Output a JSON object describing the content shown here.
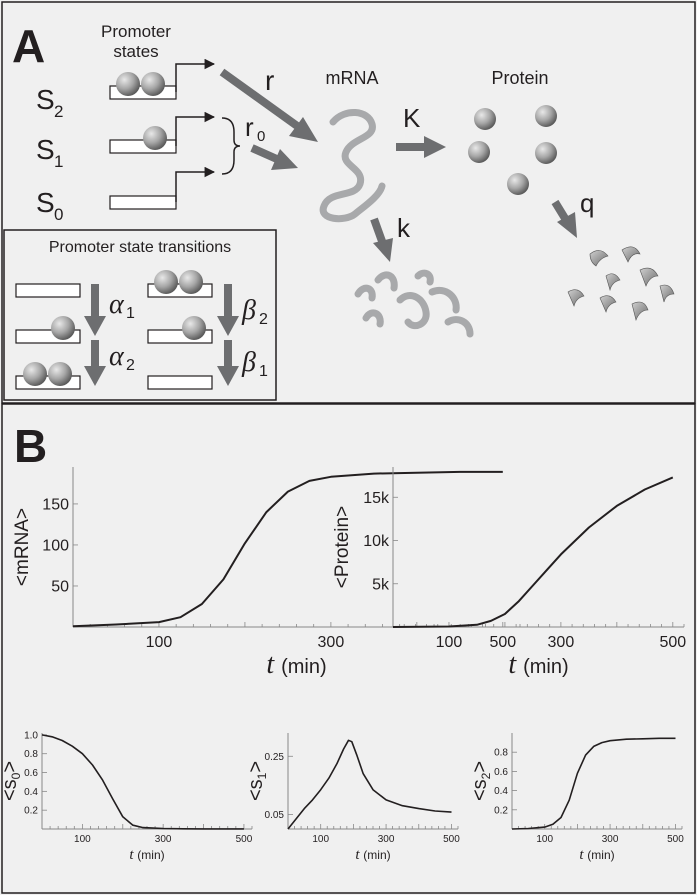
{
  "panelA": {
    "label": "A",
    "promoter_states_title": [
      "Promoter",
      "states"
    ],
    "states": [
      {
        "name": "S",
        "sub": "2"
      },
      {
        "name": "S",
        "sub": "1"
      },
      {
        "name": "S",
        "sub": "0"
      }
    ],
    "rate_r": "r",
    "rate_r0": "r",
    "rate_r0_sub": "0",
    "mrna_label": "mRNA",
    "protein_label": "Protein",
    "rate_K": "K",
    "rate_k": "k",
    "rate_q": "q",
    "transitions_title": "Promoter state transitions",
    "alpha1": "α",
    "alpha1_sub": "1",
    "alpha2": "α",
    "alpha2_sub": "2",
    "beta2": "β",
    "beta2_sub": "2",
    "beta1": "β",
    "beta1_sub": "1"
  },
  "panelB": {
    "label": "B"
  },
  "chart_data": [
    {
      "type": "line",
      "ylabel": "<mRNA>",
      "xlabel_var": "t",
      "xlabel_unit": "(min)",
      "xlim": [
        0,
        520
      ],
      "ylim": [
        0,
        195
      ],
      "xticks": [
        "100",
        "300",
        "500"
      ],
      "yticks": [
        "50",
        "100",
        "150"
      ],
      "series": [
        {
          "x": [
            0,
            50,
            100,
            125,
            150,
            175,
            200,
            225,
            250,
            275,
            300,
            350,
            400,
            450,
            500
          ],
          "y": [
            1,
            3,
            6,
            12,
            28,
            58,
            102,
            140,
            165,
            178,
            183,
            187,
            188,
            189,
            189
          ]
        }
      ]
    },
    {
      "type": "line",
      "ylabel": "<Protein>",
      "xlabel_var": "t",
      "xlabel_unit": "(min)",
      "xlim": [
        0,
        520
      ],
      "ylim": [
        0,
        18500
      ],
      "xticks": [
        "100",
        "300",
        "500"
      ],
      "yticks": [
        "5k",
        "10k",
        "15k"
      ],
      "series": [
        {
          "x": [
            0,
            50,
            100,
            150,
            175,
            200,
            225,
            250,
            275,
            300,
            350,
            400,
            450,
            500
          ],
          "y": [
            0,
            20,
            60,
            250,
            700,
            1500,
            3000,
            4800,
            6600,
            8400,
            11500,
            14000,
            15900,
            17300
          ]
        }
      ]
    },
    {
      "type": "line",
      "ylabel": "<s",
      "ylabel_sub": "0",
      "ylabel_end": ">",
      "xlabel_var": "t",
      "xlabel_unit": "(min)",
      "xlim": [
        0,
        520
      ],
      "ylim": [
        0,
        1.02
      ],
      "xticks": [
        "100",
        "300",
        "500"
      ],
      "yticks": [
        "0.2",
        "0.4",
        "0.6",
        "0.8",
        "1.0"
      ],
      "series": [
        {
          "x": [
            0,
            25,
            50,
            75,
            100,
            125,
            150,
            175,
            200,
            225,
            250,
            300,
            350,
            400,
            450,
            500
          ],
          "y": [
            1.0,
            0.98,
            0.94,
            0.88,
            0.8,
            0.68,
            0.52,
            0.32,
            0.13,
            0.04,
            0.015,
            0.005,
            0.002,
            0.001,
            0.001,
            0.001
          ]
        }
      ]
    },
    {
      "type": "line",
      "ylabel": "<s",
      "ylabel_sub": "1",
      "ylabel_end": ">",
      "xlabel_var": "t",
      "xlabel_unit": "(min)",
      "xlim": [
        0,
        520
      ],
      "ylim": [
        0,
        0.33
      ],
      "xticks": [
        "100",
        "300",
        "500"
      ],
      "yticks": [
        "0.05",
        "0.25"
      ],
      "series": [
        {
          "x": [
            0,
            25,
            50,
            75,
            100,
            125,
            150,
            170,
            185,
            195,
            210,
            230,
            260,
            300,
            350,
            400,
            450,
            500
          ],
          "y": [
            0.0,
            0.035,
            0.07,
            0.1,
            0.135,
            0.175,
            0.225,
            0.275,
            0.305,
            0.3,
            0.255,
            0.19,
            0.135,
            0.1,
            0.08,
            0.07,
            0.062,
            0.058
          ]
        }
      ]
    },
    {
      "type": "line",
      "ylabel": "<s",
      "ylabel_sub": "2",
      "ylabel_end": ">",
      "xlabel_var": "t",
      "xlabel_unit": "(min)",
      "xlim": [
        0,
        520
      ],
      "ylim": [
        0,
        1.0
      ],
      "xticks": [
        "100",
        "300",
        "500"
      ],
      "yticks": [
        "0.2",
        "0.4",
        "0.6",
        "0.8"
      ],
      "series": [
        {
          "x": [
            0,
            50,
            100,
            125,
            150,
            175,
            200,
            225,
            250,
            275,
            300,
            350,
            400,
            450,
            500
          ],
          "y": [
            0.0,
            0.005,
            0.02,
            0.05,
            0.12,
            0.3,
            0.58,
            0.77,
            0.86,
            0.9,
            0.92,
            0.935,
            0.94,
            0.945,
            0.945
          ]
        }
      ]
    }
  ]
}
